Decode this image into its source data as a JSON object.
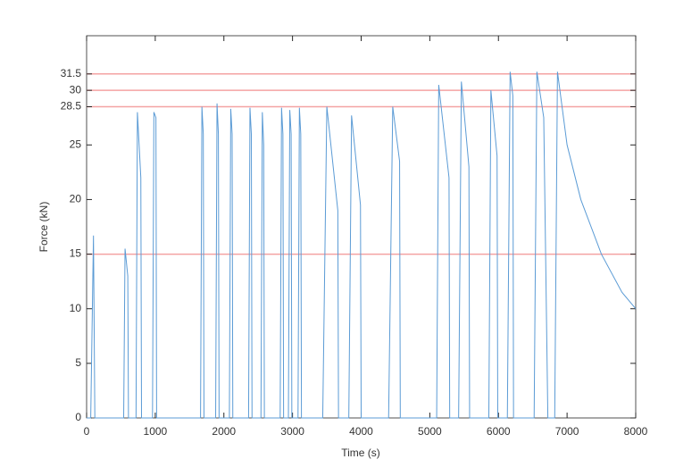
{
  "chart_data": {
    "type": "line",
    "xlabel": "Time (s)",
    "ylabel": "Force (kN)",
    "x": [
      0,
      60,
      100,
      120,
      540,
      560,
      600,
      610,
      720,
      740,
      790,
      800,
      960,
      980,
      1010,
      1020,
      1660,
      1680,
      1700,
      1710,
      1880,
      1900,
      1920,
      1930,
      2080,
      2100,
      2120,
      2130,
      2360,
      2380,
      2400,
      2410,
      2540,
      2560,
      2580,
      2590,
      2820,
      2840,
      2860,
      2870,
      2940,
      2960,
      2980,
      2990,
      3080,
      3100,
      3120,
      3130,
      3440,
      3500,
      3660,
      3670,
      3820,
      3860,
      3990,
      4000,
      4400,
      4460,
      4560,
      4570,
      5100,
      5130,
      5280,
      5290,
      5420,
      5460,
      5570,
      5580,
      5860,
      5890,
      5980,
      5990,
      6130,
      6170,
      6210,
      6220,
      6520,
      6560,
      6660,
      6720,
      6820,
      6860,
      7000,
      7200,
      7500,
      7800,
      8000
    ],
    "series": [
      {
        "color": "#5b9bd5",
        "values": [
          0,
          0,
          16.7,
          0,
          0,
          15.5,
          13,
          0,
          0,
          28,
          22,
          0,
          0,
          28,
          27.5,
          0,
          0,
          28.5,
          26,
          0,
          0,
          28.8,
          26,
          0,
          0,
          28.3,
          26,
          0,
          0,
          28.4,
          26,
          0,
          0,
          28,
          25,
          0,
          0,
          28.4,
          26,
          0,
          0,
          28.2,
          26,
          0,
          0,
          28.4,
          26,
          0,
          0,
          28.5,
          19,
          0,
          0,
          27.7,
          19.5,
          0,
          0,
          28.5,
          23.5,
          0,
          0,
          30.5,
          22,
          0,
          0,
          30.8,
          23,
          0,
          0,
          30,
          24,
          0,
          0,
          31.7,
          29.5,
          0,
          0,
          31.7,
          27.5,
          0,
          0,
          31.7,
          25,
          20,
          15,
          11.5,
          10
        ]
      }
    ],
    "reference_lines": [
      15,
      28.5,
      30,
      31.5
    ],
    "reference_color": "#f4a3a3",
    "xlim": [
      0,
      8000
    ],
    "xticks": [
      0,
      1000,
      2000,
      3000,
      4000,
      5000,
      6000,
      7000,
      8000
    ],
    "ylim": [
      0,
      35
    ],
    "yticks": [
      0,
      5,
      10,
      15,
      20,
      25,
      28.5,
      30,
      31.5
    ],
    "grid": false
  }
}
